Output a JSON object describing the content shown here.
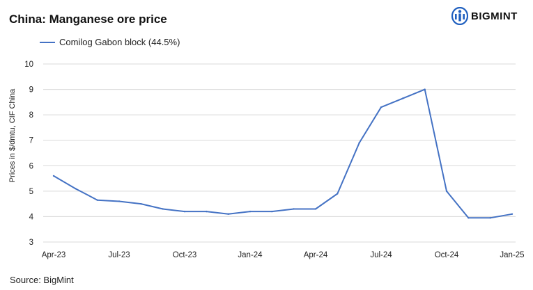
{
  "title": "China: Manganese ore price",
  "logo": {
    "text": "BIGMINT",
    "icon": "bigmint-logo-icon"
  },
  "source": "Source: BigMint",
  "colors": {
    "series": "#4472C4",
    "logo": "#1f5fbf",
    "grid": "#d9d9d9"
  },
  "chart_data": {
    "type": "line",
    "title": "China: Manganese ore price",
    "ylabel": "Prices in $/dmtu, CIF China",
    "xlabel": "",
    "ylim": [
      3,
      10
    ],
    "yticks": [
      3,
      4,
      5,
      6,
      7,
      8,
      9,
      10
    ],
    "grid": "horizontal",
    "legend": "top-left",
    "x": [
      "Apr-23",
      "May-23",
      "Jun-23",
      "Jul-23",
      "Aug-23",
      "Sep-23",
      "Oct-23",
      "Nov-23",
      "Dec-23",
      "Jan-24",
      "Feb-24",
      "Mar-24",
      "Apr-24",
      "May-24",
      "Jun-24",
      "Jul-24",
      "Aug-24",
      "Sep-24",
      "Oct-24",
      "Nov-24",
      "Dec-24",
      "Jan-25"
    ],
    "xtick_labels": [
      "Apr-23",
      "Jul-23",
      "Oct-23",
      "Jan-24",
      "Apr-24",
      "Jul-24",
      "Oct-24",
      "Jan-25"
    ],
    "series": [
      {
        "name": "Comilog Gabon block (44.5%)",
        "values": [
          5.6,
          5.1,
          4.65,
          4.6,
          4.5,
          4.3,
          4.2,
          4.2,
          4.1,
          4.2,
          4.2,
          4.3,
          4.3,
          4.9,
          6.9,
          8.3,
          8.65,
          9.0,
          5.0,
          3.95,
          3.95,
          4.1
        ]
      }
    ]
  }
}
